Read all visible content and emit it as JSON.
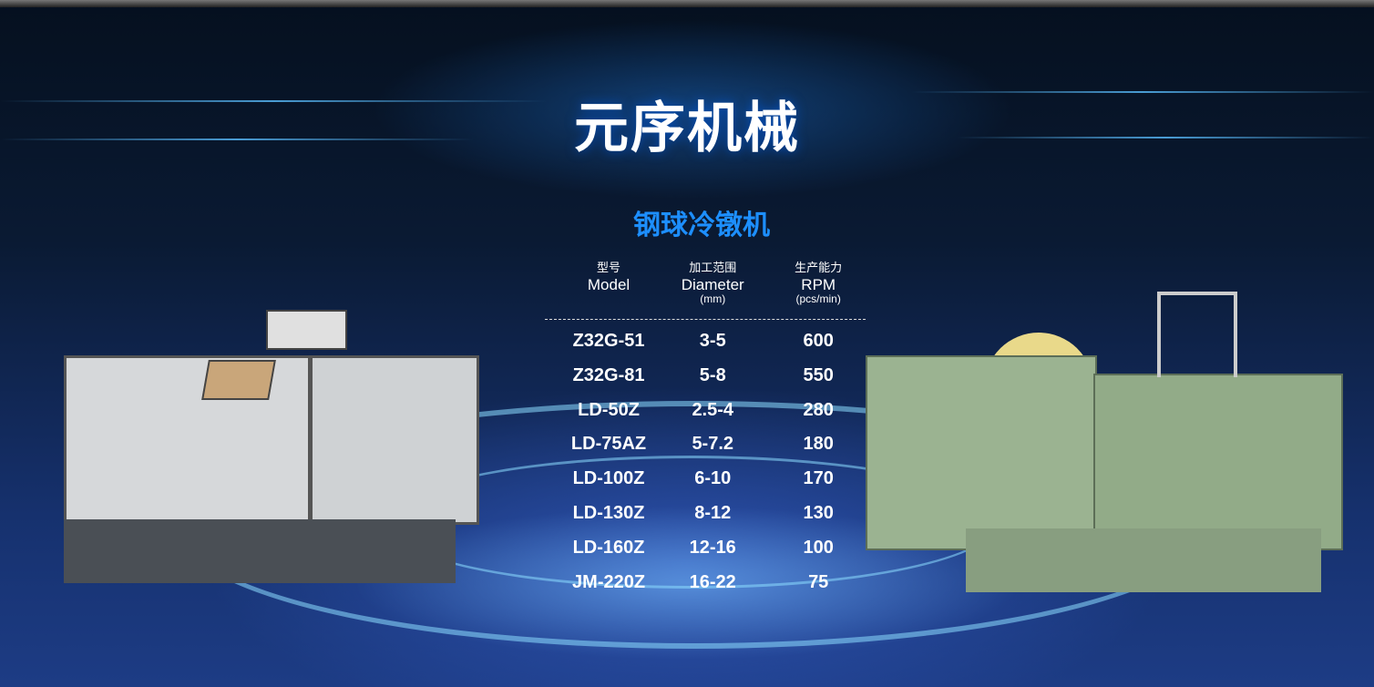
{
  "title": "元序机械",
  "subtitle": "钢球冷镦机",
  "table": {
    "headers": [
      {
        "zh": "型号",
        "en": "Model",
        "unit": ""
      },
      {
        "zh": "加工范围",
        "en": "Diameter",
        "unit": "(mm)"
      },
      {
        "zh": "生产能力",
        "en": "RPM",
        "unit": "(pcs/min)"
      }
    ],
    "rows": [
      [
        "Z32G-51",
        "3-5",
        "600"
      ],
      [
        "Z32G-81",
        "5-8",
        "550"
      ],
      [
        "LD-50Z",
        "2.5-4",
        "280"
      ],
      [
        "LD-75AZ",
        "5-7.2",
        "180"
      ],
      [
        "LD-100Z",
        "6-10",
        "170"
      ],
      [
        "LD-130Z",
        "8-12",
        "130"
      ],
      [
        "LD-160Z",
        "12-16",
        "100"
      ],
      [
        "JM-220Z",
        "16-22",
        "75"
      ]
    ]
  },
  "colors": {
    "title": "#ffffff",
    "subtitle": "#1d8fff",
    "background": "#0a1a33",
    "left_machine": "#d8dadc",
    "right_machine": "#9bb391"
  }
}
